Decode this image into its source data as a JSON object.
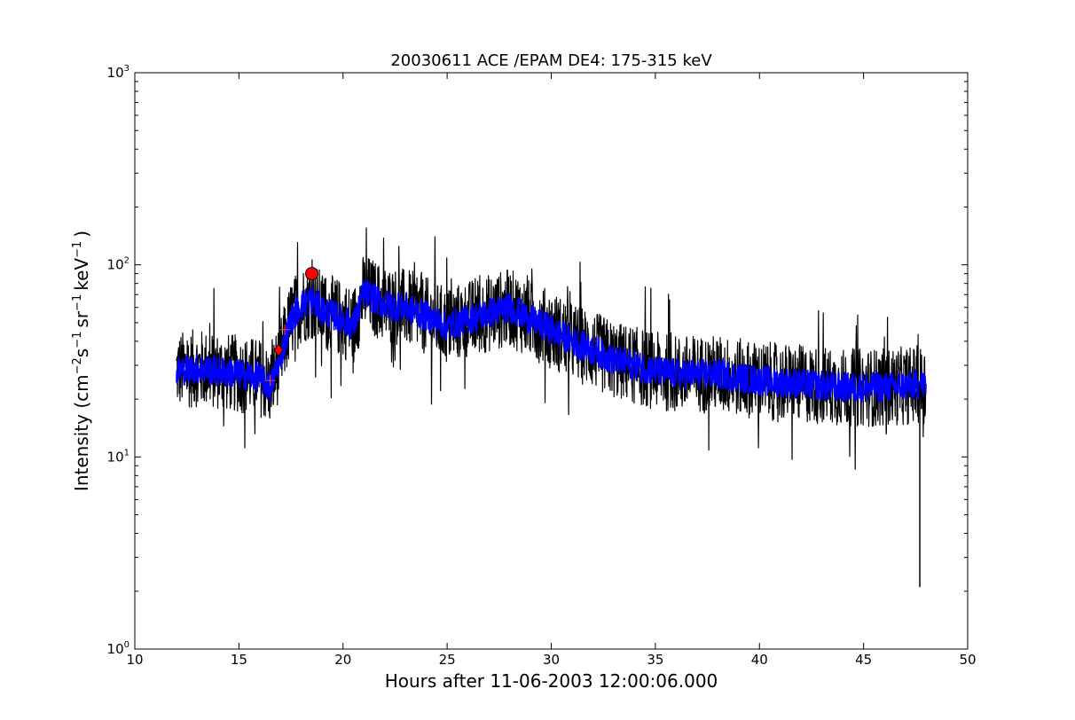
{
  "chart_data": {
    "type": "line",
    "title": "20030611 ACE /EPAM DE4: 175-315 keV",
    "xlabel": "Hours after 11-06-2003 12:00:06.000",
    "ylabel_parts": {
      "prefix": "Intensity (cm",
      "sup1": "−2",
      "s": "s",
      "sup2": "−1",
      "sr": "sr",
      "sup3": "−1",
      "kev": "keV",
      "sup4": "−1",
      "suffix": ")"
    },
    "xlim": [
      10,
      50
    ],
    "ylim": [
      1,
      1000
    ],
    "yscale": "log",
    "grid": false,
    "xticks": [
      10,
      15,
      20,
      25,
      30,
      35,
      40,
      45,
      50
    ],
    "yticks": [
      {
        "base": "10",
        "exp": "0",
        "value": 1
      },
      {
        "base": "10",
        "exp": "1",
        "value": 10
      },
      {
        "base": "10",
        "exp": "2",
        "value": 100
      },
      {
        "base": "10",
        "exp": "3",
        "value": 1000
      }
    ],
    "trend": {
      "x": [
        12.0,
        13.0,
        14.0,
        15.0,
        16.0,
        16.5,
        17.0,
        17.5,
        18.0,
        18.5,
        19.0,
        20.0,
        20.5,
        21.0,
        22.0,
        23.0,
        24.0,
        25.0,
        26.0,
        27.0,
        28.0,
        29.0,
        30.0,
        31.0,
        32.0,
        33.0,
        34.0,
        35.0,
        36.0,
        38.0,
        40.0,
        42.0,
        44.0,
        46.0,
        48.0
      ],
      "y": [
        28,
        29,
        28,
        27,
        26,
        23,
        33,
        52,
        62,
        66,
        58,
        52,
        48,
        72,
        62,
        60,
        54,
        48,
        52,
        56,
        60,
        52,
        46,
        40,
        36,
        32,
        30,
        28,
        27,
        27,
        25,
        24,
        23,
        23,
        24
      ]
    },
    "series": [
      {
        "name": "",
        "color": "#000000",
        "role": "raw",
        "spread": 1.6,
        "points_per_hour": 60
      },
      {
        "name": "",
        "color": "#0000ff",
        "role": "smoothed",
        "spread": 1.2,
        "points_per_hour": 60
      }
    ],
    "markers": [
      {
        "label": "onset",
        "shape": "diamond",
        "x": 16.9,
        "y": 36,
        "color": "#ff0000"
      },
      {
        "label": "peak",
        "shape": "circle",
        "x": 18.5,
        "y": 90,
        "color": "#ff0000"
      }
    ],
    "annotations": [
      {
        "shape": "plus",
        "x": 16.5,
        "y": 25,
        "color": "#ff4444"
      },
      {
        "shape": "plus",
        "x": 17.2,
        "y": 46,
        "color": "#ff4444"
      }
    ],
    "outliers": [
      {
        "x": 47.7,
        "y": 2.1
      }
    ]
  }
}
